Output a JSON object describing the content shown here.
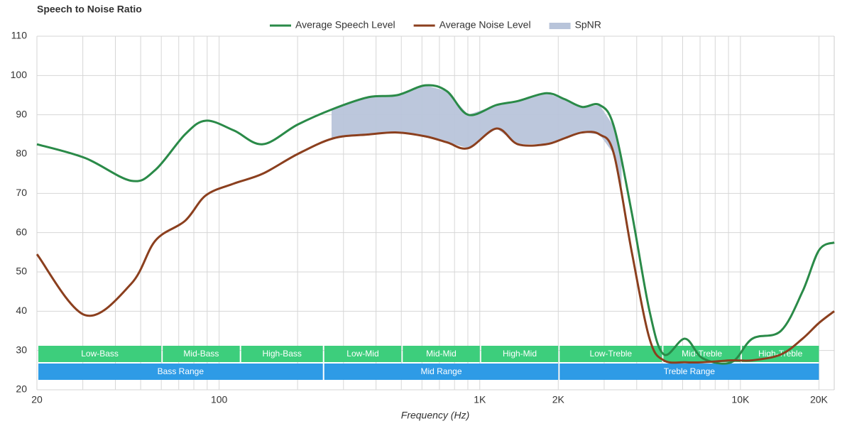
{
  "chart_data": {
    "type": "line",
    "title": "Speech to Noise Ratio",
    "x_label": "Frequency (Hz)",
    "x": [
      20,
      30.6,
      46,
      57,
      74,
      89,
      114,
      147,
      200,
      274,
      375,
      482,
      620,
      748,
      903,
      1160,
      1400,
      1800,
      2110,
      2470,
      2880,
      3270,
      3830,
      4480,
      5080,
      6130,
      7170,
      9230,
      11100,
      14300,
      17300,
      20000,
      22900
    ],
    "series": [
      {
        "name": "Average Speech Level",
        "color": "#2a8a48",
        "values": [
          82.5,
          79,
          73.2,
          76,
          85,
          88.5,
          86,
          82.5,
          87.5,
          91.5,
          94.5,
          95,
          97.5,
          96,
          90,
          92.5,
          93.5,
          95.5,
          94,
          92,
          92.5,
          87,
          65,
          40,
          29,
          33,
          28,
          27,
          33,
          35,
          45,
          55.5,
          57.5
        ]
      },
      {
        "name": "Average Noise Level",
        "color": "#8b3f1e",
        "values": [
          54.5,
          39,
          47,
          58,
          63,
          69.5,
          72.5,
          75,
          80,
          84,
          85,
          85.5,
          84.5,
          83,
          81.5,
          86.5,
          82.5,
          82.5,
          84,
          85.5,
          85,
          80,
          55,
          33,
          27.5,
          27,
          27,
          27.5,
          27.5,
          29,
          33,
          37,
          40
        ]
      }
    ],
    "area": {
      "name": "SpNR",
      "color": "#b8c4da",
      "x_range": [
        270,
        3500
      ]
    },
    "bands": [
      [
        {
          "label": "Low-Bass",
          "range": [
            20,
            60
          ]
        },
        {
          "label": "Mid-Bass",
          "range": [
            60,
            120
          ]
        },
        {
          "label": "High-Bass",
          "range": [
            120,
            250
          ]
        },
        {
          "label": "Low-Mid",
          "range": [
            250,
            500
          ]
        },
        {
          "label": "Mid-Mid",
          "range": [
            500,
            1000
          ]
        },
        {
          "label": "High-Mid",
          "range": [
            1000,
            2000
          ]
        },
        {
          "label": "Low-Treble",
          "range": [
            2000,
            5000
          ]
        },
        {
          "label": "Mid-Treble",
          "range": [
            5000,
            10000
          ]
        },
        {
          "label": "High-Treble",
          "range": [
            10000,
            20000
          ]
        }
      ],
      [
        {
          "label": "Bass Range",
          "range": [
            20,
            250
          ]
        },
        {
          "label": "Mid Range",
          "range": [
            250,
            2000
          ]
        },
        {
          "label": "Treble Range",
          "range": [
            2000,
            20000
          ]
        }
      ]
    ],
    "band_colors": [
      "#3dce7c",
      "#2e9be6"
    ],
    "xscale": "log",
    "xlim": [
      20,
      22900
    ],
    "xticks": [
      20,
      100,
      {
        "value": 1000,
        "label": "1K"
      },
      {
        "value": 2000,
        "label": "2K"
      },
      {
        "value": 10000,
        "label": "10K"
      },
      {
        "value": 20000,
        "label": "20K"
      }
    ],
    "xminor_ticks": [
      30,
      40,
      50,
      60,
      70,
      80,
      90,
      200,
      300,
      400,
      500,
      600,
      700,
      800,
      900,
      3000,
      4000,
      5000,
      6000,
      7000,
      8000,
      9000
    ],
    "ylim": [
      20,
      110
    ],
    "yticks": [
      20,
      30,
      40,
      50,
      60,
      70,
      80,
      90,
      100,
      110
    ],
    "grid": true
  }
}
